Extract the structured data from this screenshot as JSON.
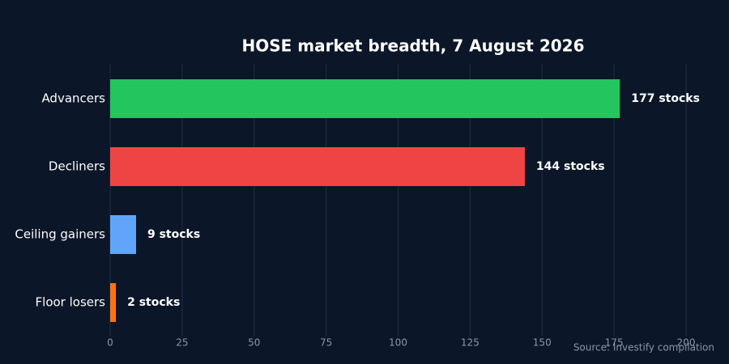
{
  "chart_data": {
    "type": "bar",
    "orientation": "horizontal",
    "title": "HOSE market breadth, 7 August 2026",
    "categories": [
      "Advancers",
      "Decliners",
      "Ceiling gainers",
      "Floor losers"
    ],
    "values": [
      177,
      144,
      9,
      2
    ],
    "value_labels": [
      "177 stocks",
      "144 stocks",
      "9 stocks",
      "2 stocks"
    ],
    "colors": [
      "#22c55e",
      "#ef4444",
      "#60a5fa",
      "#f97316"
    ],
    "xlim": [
      0,
      200
    ],
    "xticks": [
      0,
      25,
      50,
      75,
      100,
      125,
      150,
      175,
      200
    ],
    "grid": true,
    "source": "Source: Investify compilation"
  }
}
